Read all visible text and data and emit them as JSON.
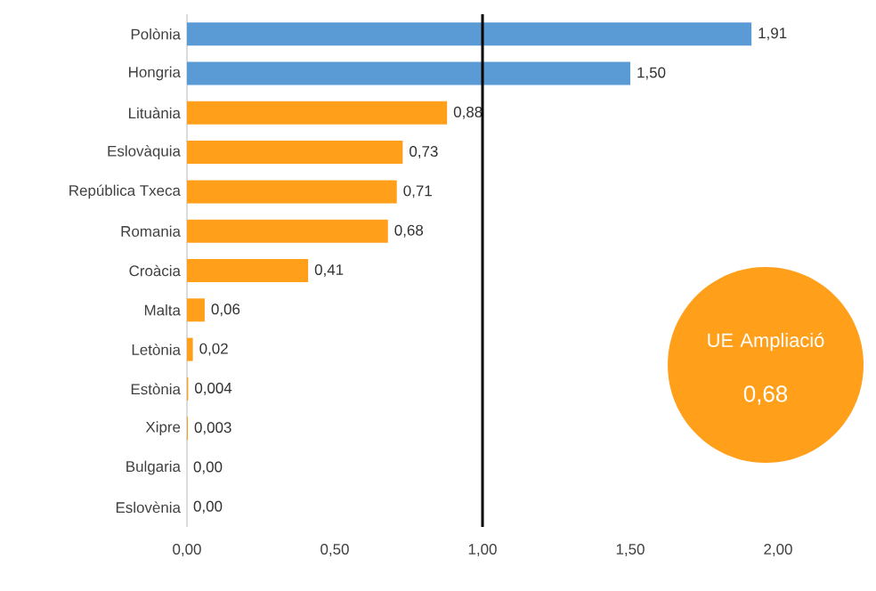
{
  "chart_data": {
    "type": "bar",
    "orientation": "horizontal",
    "categories": [
      "Polònia",
      "Hongria",
      "Lituània",
      "Eslovàquia",
      "República Txeca",
      "Romania",
      "Croàcia",
      "Malta",
      "Letònia",
      "Estònia",
      "Xipre",
      "Bulgaria",
      "Eslovènia"
    ],
    "values": [
      1.91,
      1.5,
      0.88,
      0.73,
      0.71,
      0.68,
      0.41,
      0.06,
      0.02,
      0.004,
      0.003,
      0.0,
      0.0
    ],
    "colors": [
      "#5b9bd5",
      "#5b9bd5",
      "#ff9f1a",
      "#ff9f1a",
      "#ff9f1a",
      "#ff9f1a",
      "#ff9f1a",
      "#ff9f1a",
      "#ff9f1a",
      "#ff9f1a",
      "#ff9f1a",
      "#ff9f1a",
      "#ff9f1a"
    ],
    "value_labels": [
      "1,91",
      "1,50",
      "0,88",
      "0,73",
      "0,71",
      "0,68",
      "0,41",
      "0,06",
      "0,02",
      "0,004",
      "0,003",
      "0,00",
      "0,00"
    ],
    "xlim": [
      0,
      2
    ],
    "xticks": [
      {
        "value": 0,
        "label": "0,00"
      },
      {
        "value": 0.5,
        "label": "0,50"
      },
      {
        "value": 1,
        "label": "1,00"
      },
      {
        "value": 1.5,
        "label": "1,50"
      },
      {
        "value": 2,
        "label": "2,00"
      }
    ],
    "ref_lines": [
      {
        "axis": "x",
        "value": 1,
        "color": "#000000"
      }
    ],
    "annotations": [
      "UE Ampliació",
      "0,68"
    ],
    "grid": false
  }
}
